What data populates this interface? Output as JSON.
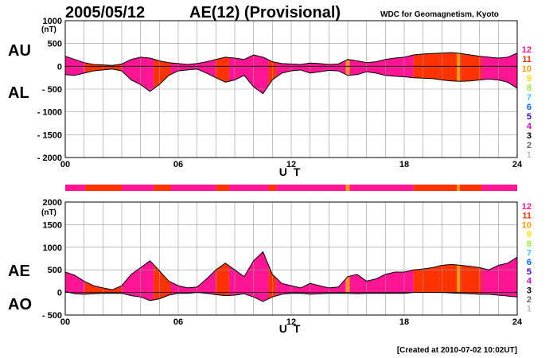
{
  "header": {
    "date": "2005/05/12",
    "index_title": "AE(12) (Provisional)",
    "organization": "WDC for Geomagnetism, Kyoto"
  },
  "footer": {
    "created": "[Created at 2010-07-02 10:02UT]"
  },
  "legend": {
    "items": [
      {
        "label": "12",
        "color": "#ff1493"
      },
      {
        "label": "11",
        "color": "#ff3300"
      },
      {
        "label": "10",
        "color": "#ff9900"
      },
      {
        "label": "9",
        "color": "#ffe000"
      },
      {
        "label": "8",
        "color": "#99ee33"
      },
      {
        "label": "7",
        "color": "#33ccff"
      },
      {
        "label": "6",
        "color": "#0066ff"
      },
      {
        "label": "5",
        "color": "#3300cc"
      },
      {
        "label": "4",
        "color": "#cc00cc"
      },
      {
        "label": "3",
        "color": "#000000"
      },
      {
        "label": "2",
        "color": "#666666"
      },
      {
        "label": "1",
        "color": "#bbbbbb"
      }
    ]
  },
  "chart_data": [
    {
      "type": "area",
      "name": "AU/AL panel",
      "unit_label": "(nT)",
      "upper_label": "AU",
      "lower_label": "AL",
      "xlabel": "U T",
      "xlim": [
        0,
        24
      ],
      "ylim": [
        -2000,
        1000
      ],
      "x_ticks": [
        0,
        6,
        12,
        18,
        24
      ],
      "x_tick_labels": [
        "00",
        "06",
        "12",
        "18",
        "24"
      ],
      "y_tick_labels": [
        "1000",
        "500",
        "0",
        "- 500",
        "- 1000",
        "- 1500",
        "- 2000"
      ],
      "y_tick_values": [
        1000,
        500,
        0,
        -500,
        -1000,
        -1500,
        -2000
      ],
      "x": [
        0,
        0.5,
        1,
        1.5,
        2,
        2.5,
        3,
        3.5,
        4,
        4.5,
        5,
        5.5,
        6,
        6.5,
        7,
        7.5,
        8,
        8.5,
        9,
        9.5,
        10,
        10.5,
        11,
        11.5,
        12,
        12.5,
        13,
        13.5,
        14,
        14.5,
        15,
        15.5,
        16,
        16.5,
        17,
        17.5,
        18,
        18.5,
        19,
        19.5,
        20,
        20.5,
        21,
        21.5,
        22,
        22.5,
        23,
        23.5,
        24
      ],
      "series": [
        {
          "name": "AU",
          "values": [
            220,
            150,
            80,
            40,
            30,
            20,
            50,
            150,
            200,
            180,
            120,
            80,
            60,
            40,
            60,
            100,
            150,
            200,
            180,
            150,
            250,
            200,
            100,
            60,
            50,
            40,
            70,
            60,
            40,
            50,
            150,
            120,
            80,
            100,
            150,
            180,
            200,
            250,
            270,
            280,
            290,
            300,
            280,
            250,
            220,
            200,
            180,
            200,
            290
          ]
        },
        {
          "name": "AL",
          "values": [
            -180,
            -200,
            -150,
            -100,
            -80,
            -60,
            -100,
            -300,
            -400,
            -550,
            -400,
            -200,
            -100,
            -80,
            -60,
            -150,
            -250,
            -350,
            -300,
            -200,
            -450,
            -600,
            -300,
            -150,
            -100,
            -80,
            -150,
            -120,
            -90,
            -100,
            -200,
            -180,
            -120,
            -150,
            -200,
            -220,
            -230,
            -250,
            -260,
            -270,
            -300,
            -320,
            -330,
            -320,
            -300,
            -280,
            -300,
            -350,
            -480
          ]
        }
      ]
    },
    {
      "type": "area",
      "name": "AE/AO panel",
      "unit_label": "(nT)",
      "upper_label": "AE",
      "lower_label": "AO",
      "xlabel": "U T",
      "xlim": [
        0,
        24
      ],
      "ylim": [
        -500,
        2000
      ],
      "x_ticks": [
        0,
        6,
        12,
        18,
        24
      ],
      "x_tick_labels": [
        "00",
        "06",
        "12",
        "18",
        "24"
      ],
      "y_tick_labels": [
        "2000",
        "1500",
        "1000",
        "500",
        "0",
        "- 500"
      ],
      "y_tick_values": [
        2000,
        1500,
        1000,
        500,
        0,
        -500
      ],
      "x": [
        0,
        0.5,
        1,
        1.5,
        2,
        2.5,
        3,
        3.5,
        4,
        4.5,
        5,
        5.5,
        6,
        6.5,
        7,
        7.5,
        8,
        8.5,
        9,
        9.5,
        10,
        10.5,
        11,
        11.5,
        12,
        12.5,
        13,
        13.5,
        14,
        14.5,
        15,
        15.5,
        16,
        16.5,
        17,
        17.5,
        18,
        18.5,
        19,
        19.5,
        20,
        20.5,
        21,
        21.5,
        22,
        22.5,
        23,
        23.5,
        24
      ],
      "series": [
        {
          "name": "AE",
          "values": [
            450,
            380,
            250,
            150,
            100,
            60,
            150,
            400,
            550,
            700,
            480,
            250,
            150,
            100,
            120,
            300,
            500,
            650,
            500,
            350,
            700,
            900,
            400,
            200,
            150,
            100,
            200,
            150,
            100,
            120,
            350,
            400,
            250,
            300,
            400,
            450,
            450,
            500,
            520,
            550,
            600,
            620,
            600,
            580,
            550,
            500,
            600,
            650,
            780
          ]
        },
        {
          "name": "AO",
          "values": [
            20,
            -30,
            -40,
            -30,
            -20,
            -20,
            -20,
            -70,
            -100,
            -180,
            -140,
            -60,
            -20,
            -20,
            0,
            -20,
            -50,
            -70,
            -60,
            -30,
            -100,
            -200,
            -100,
            -40,
            -20,
            -20,
            -40,
            -30,
            -20,
            -20,
            -20,
            -30,
            -20,
            -20,
            -20,
            -20,
            -20,
            0,
            0,
            0,
            0,
            -10,
            -20,
            -30,
            -40,
            -40,
            -60,
            -80,
            -100
          ]
        }
      ]
    }
  ],
  "station_count_band": {
    "segments": [
      {
        "from": 0,
        "to": 1.05,
        "label": "12"
      },
      {
        "from": 1.05,
        "to": 3.0,
        "label": "11"
      },
      {
        "from": 3.0,
        "to": 4.7,
        "label": "12"
      },
      {
        "from": 4.7,
        "to": 5.6,
        "label": "11"
      },
      {
        "from": 5.6,
        "to": 8.0,
        "label": "12"
      },
      {
        "from": 8.0,
        "to": 8.7,
        "label": "11"
      },
      {
        "from": 8.7,
        "to": 10.8,
        "label": "12"
      },
      {
        "from": 10.8,
        "to": 11.2,
        "label": "11"
      },
      {
        "from": 11.2,
        "to": 14.9,
        "label": "12"
      },
      {
        "from": 14.9,
        "to": 15.1,
        "label": "10"
      },
      {
        "from": 15.1,
        "to": 18.5,
        "label": "12"
      },
      {
        "from": 18.5,
        "to": 20.8,
        "label": "11"
      },
      {
        "from": 20.8,
        "to": 20.95,
        "label": "10"
      },
      {
        "from": 20.95,
        "to": 22.1,
        "label": "11"
      },
      {
        "from": 22.1,
        "to": 24,
        "label": "12"
      }
    ]
  }
}
